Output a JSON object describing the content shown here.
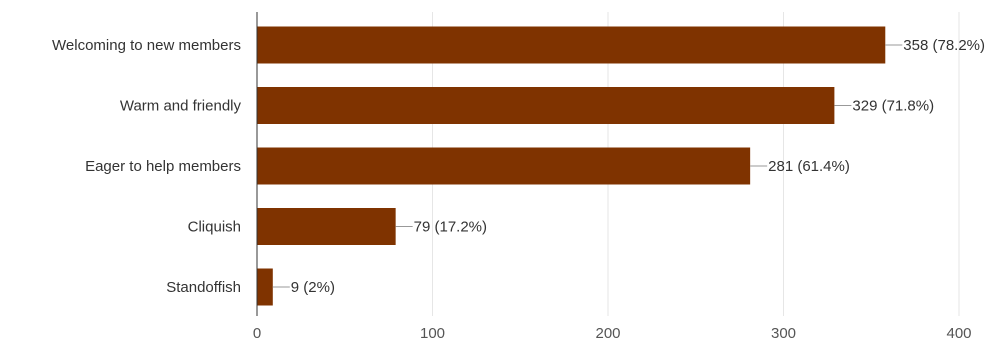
{
  "chart_data": {
    "type": "bar",
    "orientation": "horizontal",
    "categories": [
      "Welcoming to new members",
      "Warm and friendly",
      "Eager to help members",
      "Cliquish",
      "Standoffish"
    ],
    "values": [
      358,
      329,
      281,
      79,
      9
    ],
    "data_labels": [
      "358 (78.2%)",
      "329 (71.8%)",
      "281 (61.4%)",
      "79 (17.2%)",
      "9 (2%)"
    ],
    "xlim": [
      0,
      400
    ],
    "xticks": [
      0,
      100,
      200,
      300,
      400
    ],
    "xtick_labels": [
      "0",
      "100",
      "200",
      "300",
      "400"
    ],
    "grid": true,
    "legend": "none",
    "colors": {
      "bar": "#7f3300",
      "grid": "#e6e6e6",
      "axis": "#333333",
      "leader": "#999999"
    }
  }
}
